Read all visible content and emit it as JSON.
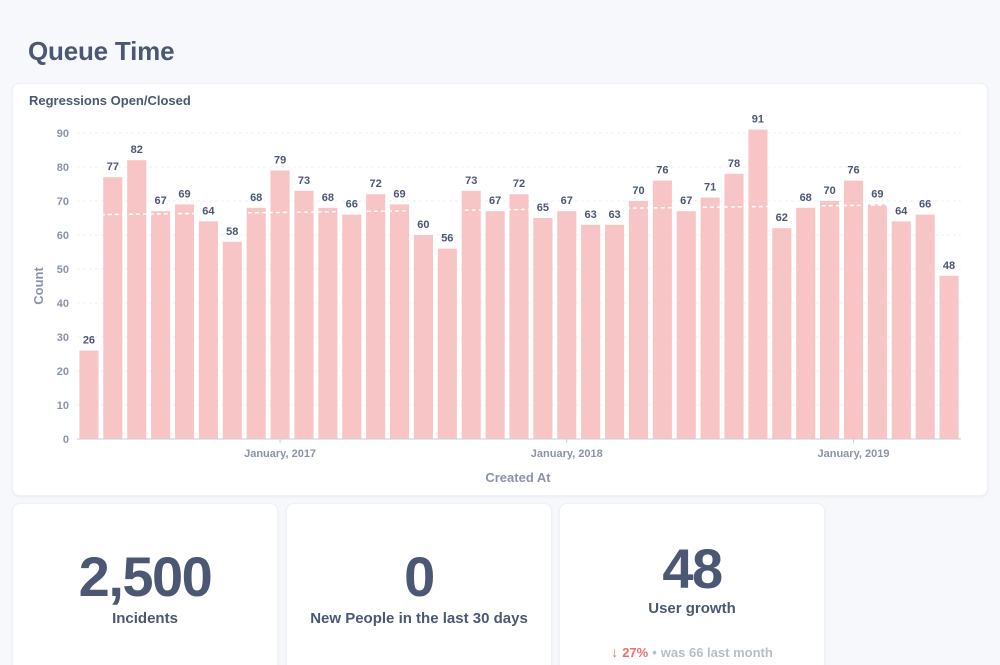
{
  "page": {
    "title": "Queue Time"
  },
  "chart_card": {
    "title": "Regressions Open/Closed"
  },
  "chart_data": {
    "type": "bar",
    "title": "Regressions Open/Closed",
    "xlabel": "Created At",
    "ylabel": "Count",
    "ylim": [
      0,
      90
    ],
    "yticks": [
      0,
      10,
      20,
      30,
      40,
      50,
      60,
      70,
      80,
      90
    ],
    "x_tick_labels": [
      {
        "label": "January, 2017",
        "index": 8.5
      },
      {
        "label": "January, 2018",
        "index": 20.5
      },
      {
        "label": "January, 2019",
        "index": 32.5
      }
    ],
    "values": [
      26,
      77,
      82,
      67,
      69,
      64,
      58,
      68,
      79,
      73,
      68,
      66,
      72,
      69,
      60,
      56,
      73,
      67,
      72,
      65,
      67,
      63,
      63,
      70,
      76,
      67,
      71,
      78,
      91,
      62,
      68,
      70,
      76,
      69,
      64,
      66,
      48
    ],
    "trend_line": {
      "style": "dashed",
      "values": [
        66,
        67,
        68,
        69
      ]
    },
    "grid": "horizontal-dashed",
    "bar_color": "#f7c5c6"
  },
  "scalars": [
    {
      "value": "2,500",
      "label": "Incidents"
    },
    {
      "value": "0",
      "label": "New People in the last 30 days"
    },
    {
      "value": "48",
      "label": "User growth",
      "comparison": {
        "icon": "arrow-down-icon",
        "percent": "27%",
        "separator": "•",
        "text": "was 66  last month",
        "color": "#ed6e6e"
      }
    }
  ]
}
